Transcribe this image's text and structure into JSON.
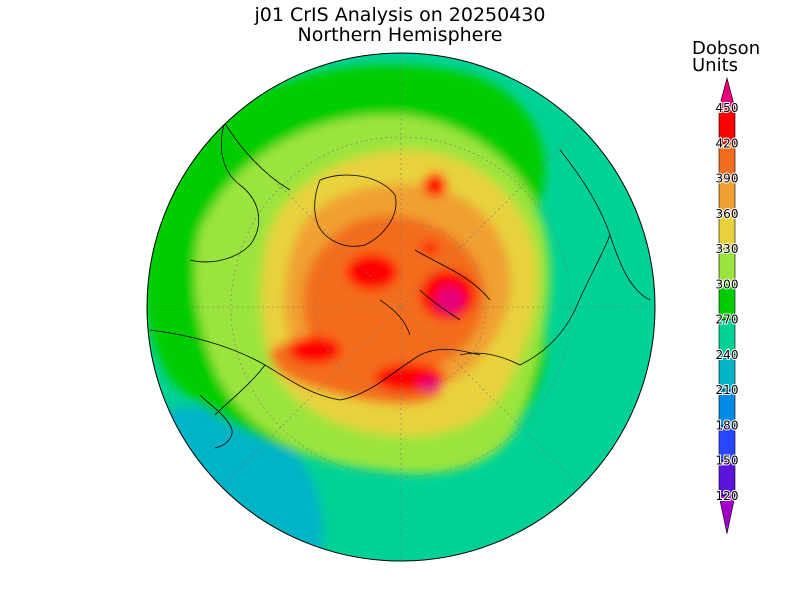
{
  "title": "j01 CrIS Analysis on 20250430",
  "subtitle": "Northern Hemisphere",
  "colorbar": {
    "label_line1": "Dobson",
    "label_line2": "Units",
    "ticks": [
      "450",
      "420",
      "390",
      "360",
      "330",
      "300",
      "270",
      "240",
      "210",
      "180",
      "150",
      "120"
    ],
    "colors": [
      "#e6007a",
      "#ff0000",
      "#f36d1e",
      "#f0a030",
      "#e8d23c",
      "#9be43c",
      "#00cd00",
      "#00d296",
      "#00b4c8",
      "#008ce6",
      "#2846ff",
      "#5a14dc",
      "#a000c8"
    ]
  },
  "map": {
    "projection": "north-polar-stereographic",
    "grid": true
  },
  "chart_data": {
    "type": "heatmap",
    "title": "j01 CrIS Analysis on 20250430",
    "subtitle": "Northern Hemisphere",
    "units": "Dobson Units",
    "vmin": 120,
    "vmax": 450,
    "levels": [
      120,
      150,
      180,
      210,
      240,
      270,
      300,
      330,
      360,
      390,
      420,
      450
    ]
  }
}
